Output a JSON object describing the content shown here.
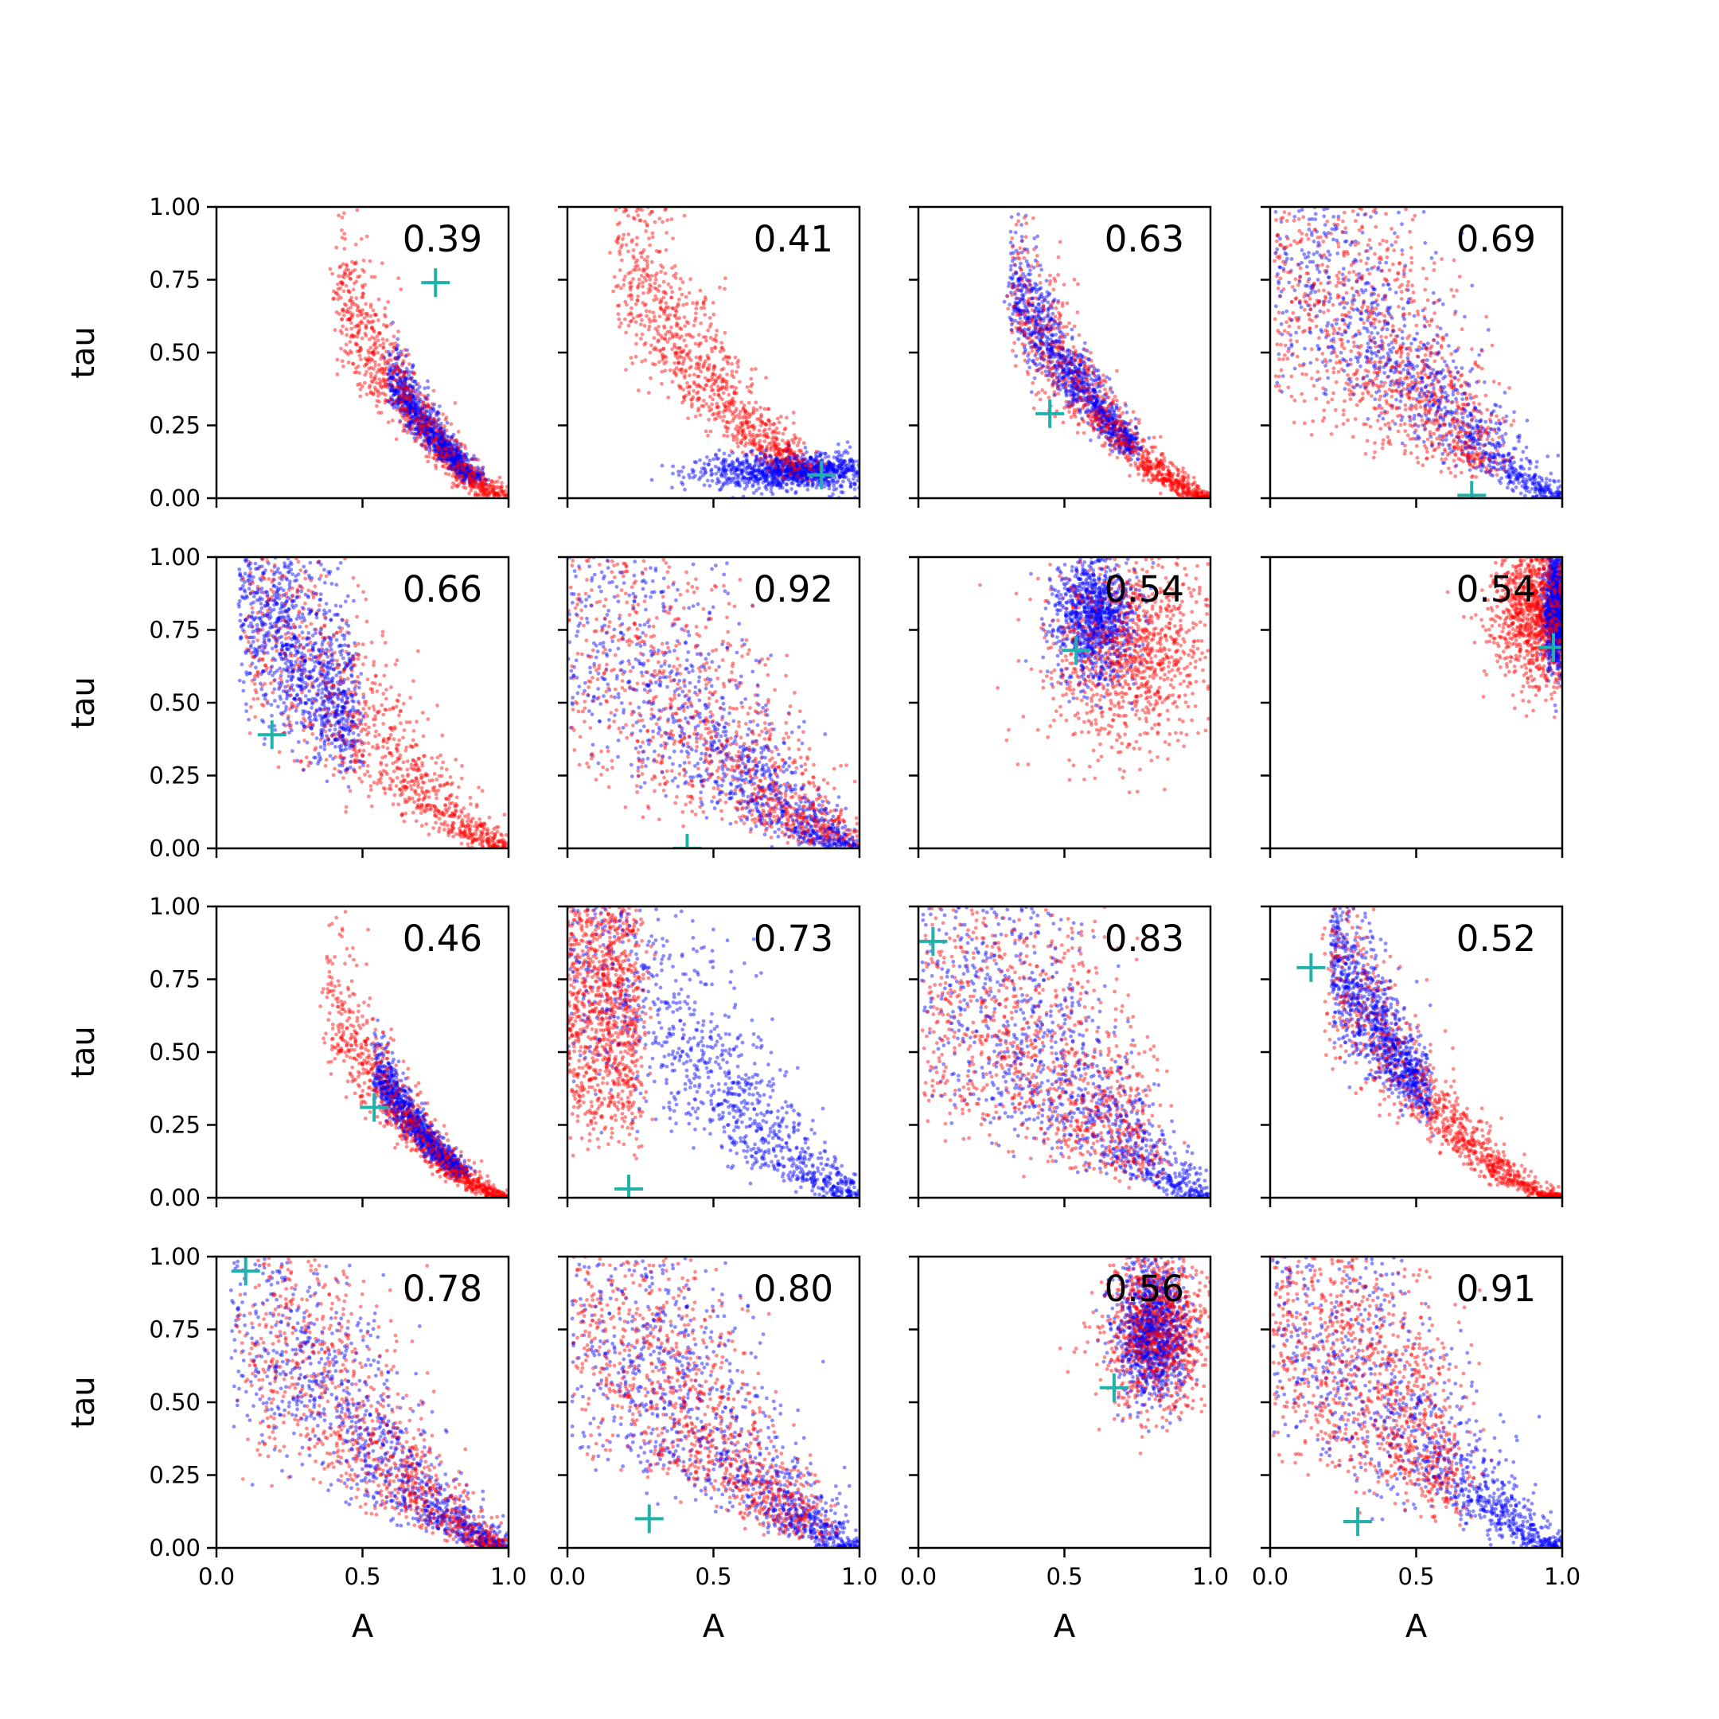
{
  "chart_data": {
    "type": "scatter",
    "layout": "4x4 grid",
    "xlabel": "A",
    "ylabel": "tau",
    "xlim": [
      0,
      1
    ],
    "ylim": [
      0,
      1
    ],
    "x_ticks": [
      "0.0",
      "0.5",
      "1.0"
    ],
    "y_ticks": [
      "0.00",
      "0.25",
      "0.50",
      "0.75",
      "1.00"
    ],
    "series_colors": {
      "blue": "#0000ff",
      "red": "#ff0000",
      "marker": "#20b2aa"
    },
    "points_per_series": 1000,
    "panels": [
      {
        "label": "0.39",
        "truth": [
          0.75,
          0.74
        ],
        "red": {
          "shape": "curve",
          "a": 0.25,
          "n": 1.5,
          "s": 0.2,
          "j": 0.22,
          "t": [
            0.22,
            0.96
          ]
        },
        "blue": {
          "shape": "curve",
          "a": 0.27,
          "n": 1.5,
          "s": 0.15,
          "j": 0.12,
          "t": [
            0.45,
            0.85
          ]
        }
      },
      {
        "label": "0.41",
        "truth": [
          0.87,
          0.08
        ],
        "red": {
          "shape": "curve",
          "a": 0.05,
          "n": 1.5,
          "s": 0.25,
          "j": 0.3,
          "t": [
            0.12,
            0.8
          ]
        },
        "blue": {
          "shape": "cluster",
          "cx": 0.8,
          "cy": 0.09,
          "sx": 0.17,
          "sy": 0.03
        }
      },
      {
        "label": "0.63",
        "truth": [
          0.45,
          0.29
        ],
        "red": {
          "shape": "curve",
          "a": 0.13,
          "n": 1.5,
          "s": 0.22,
          "j": 0.2,
          "t": [
            0.22,
            1.0
          ]
        },
        "blue": {
          "shape": "curve",
          "a": 0.14,
          "n": 1.5,
          "s": 0.15,
          "j": 0.12,
          "t": [
            0.2,
            0.7
          ]
        }
      },
      {
        "label": "0.69",
        "truth": [
          0.69,
          0.01
        ],
        "red": {
          "shape": "curve",
          "a": 0.015,
          "n": 1.3,
          "s": 0.5,
          "j": 0.35,
          "t": [
            0.0,
            0.75
          ]
        },
        "blue": {
          "shape": "curve",
          "a": 0.01,
          "n": 1.3,
          "s": 0.35,
          "j": 0.25,
          "t": [
            0.0,
            1.0
          ]
        }
      },
      {
        "label": "0.66",
        "truth": [
          0.19,
          0.39
        ],
        "red": {
          "shape": "curve",
          "a": 0.06,
          "n": 1.4,
          "s": 0.4,
          "j": 0.3,
          "t": [
            0.04,
            1.0
          ]
        },
        "blue": {
          "shape": "curve",
          "a": 0.05,
          "n": 1.5,
          "s": 0.3,
          "j": 0.2,
          "t": [
            0.03,
            0.45
          ]
        }
      },
      {
        "label": "0.92",
        "truth": [
          0.41,
          0.0
        ],
        "red": {
          "shape": "curve",
          "a": 0.003,
          "n": 1.3,
          "s": 0.6,
          "j": 0.5,
          "t": [
            0.0,
            0.95
          ]
        },
        "blue": {
          "shape": "curve",
          "a": 0.003,
          "n": 1.4,
          "s": 0.5,
          "j": 0.4,
          "t": [
            0.0,
            1.0
          ]
        }
      },
      {
        "label": "0.54",
        "truth": [
          0.54,
          0.68
        ],
        "red": {
          "shape": "cluster",
          "cx": 0.72,
          "cy": 0.68,
          "sx": 0.15,
          "sy": 0.17
        },
        "blue": {
          "shape": "cluster",
          "cx": 0.6,
          "cy": 0.8,
          "sx": 0.07,
          "sy": 0.11
        }
      },
      {
        "label": "0.54",
        "truth": [
          0.97,
          0.69
        ],
        "red": {
          "shape": "cluster",
          "cx": 0.93,
          "cy": 0.82,
          "sx": 0.08,
          "sy": 0.13
        },
        "blue": {
          "shape": "cluster",
          "cx": 0.98,
          "cy": 0.82,
          "sx": 0.02,
          "sy": 0.1
        }
      },
      {
        "label": "0.46",
        "truth": [
          0.54,
          0.31
        ],
        "red": {
          "shape": "curve",
          "a": 0.2,
          "n": 1.6,
          "s": 0.2,
          "j": 0.2,
          "t": [
            0.22,
            1.0
          ]
        },
        "blue": {
          "shape": "curve",
          "a": 0.22,
          "n": 1.6,
          "s": 0.13,
          "j": 0.12,
          "t": [
            0.42,
            0.8
          ]
        }
      },
      {
        "label": "0.73",
        "truth": [
          0.21,
          0.03
        ],
        "red": {
          "shape": "curve",
          "a": 0.002,
          "n": 1.3,
          "s": 0.6,
          "j": 0.5,
          "t": [
            0.0,
            0.25
          ]
        },
        "blue": {
          "shape": "curve",
          "a": 0.004,
          "n": 1.3,
          "s": 0.45,
          "j": 0.35,
          "t": [
            0.0,
            1.0
          ]
        }
      },
      {
        "label": "0.83",
        "truth": [
          0.05,
          0.88
        ],
        "red": {
          "shape": "curve",
          "a": 0.015,
          "n": 1.2,
          "s": 0.6,
          "j": 0.4,
          "t": [
            0.0,
            0.8
          ]
        },
        "blue": {
          "shape": "curve",
          "a": 0.01,
          "n": 1.3,
          "s": 0.5,
          "j": 0.3,
          "t": [
            0.0,
            1.0
          ]
        }
      },
      {
        "label": "0.52",
        "truth": [
          0.14,
          0.79
        ],
        "red": {
          "shape": "curve",
          "a": 0.08,
          "n": 1.6,
          "s": 0.25,
          "j": 0.2,
          "t": [
            0.12,
            1.0
          ]
        },
        "blue": {
          "shape": "curve",
          "a": 0.09,
          "n": 1.6,
          "s": 0.18,
          "j": 0.15,
          "t": [
            0.13,
            0.5
          ]
        }
      },
      {
        "label": "0.78",
        "truth": [
          0.1,
          0.95
        ],
        "red": {
          "shape": "curve",
          "a": 0.05,
          "n": 1.4,
          "s": 0.45,
          "j": 0.35,
          "t": [
            0.02,
            1.0
          ]
        },
        "blue": {
          "shape": "curve",
          "a": 0.03,
          "n": 1.4,
          "s": 0.4,
          "j": 0.3,
          "t": [
            0.02,
            1.0
          ]
        }
      },
      {
        "label": "0.80",
        "truth": [
          0.28,
          0.1
        ],
        "red": {
          "shape": "curve",
          "a": 0.02,
          "n": 1.4,
          "s": 0.45,
          "j": 0.35,
          "t": [
            0.0,
            0.85
          ]
        },
        "blue": {
          "shape": "curve",
          "a": 0.015,
          "n": 1.3,
          "s": 0.5,
          "j": 0.35,
          "t": [
            0.0,
            1.0
          ]
        }
      },
      {
        "label": "0.56",
        "truth": [
          0.67,
          0.55
        ],
        "red": {
          "shape": "cluster",
          "cx": 0.82,
          "cy": 0.75,
          "sx": 0.09,
          "sy": 0.14
        },
        "blue": {
          "shape": "cluster",
          "cx": 0.8,
          "cy": 0.74,
          "sx": 0.06,
          "sy": 0.12
        }
      },
      {
        "label": "0.91",
        "truth": [
          0.3,
          0.09
        ],
        "red": {
          "shape": "curve",
          "a": 0.01,
          "n": 1.3,
          "s": 0.5,
          "j": 0.4,
          "t": [
            0.0,
            0.65
          ]
        },
        "blue": {
          "shape": "curve",
          "a": 0.008,
          "n": 1.3,
          "s": 0.45,
          "j": 0.35,
          "t": [
            0.0,
            1.0
          ]
        }
      }
    ]
  }
}
